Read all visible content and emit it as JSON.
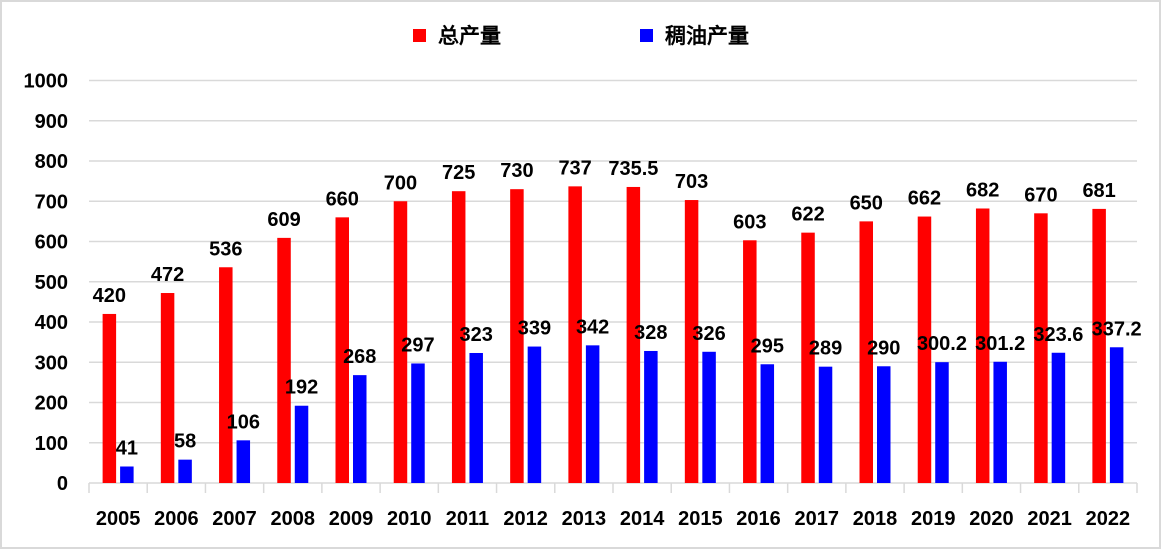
{
  "chart_data": {
    "type": "bar",
    "title": "",
    "xlabel": "",
    "ylabel": "",
    "ylim": [
      0,
      1000
    ],
    "yticks": [
      0,
      100,
      200,
      300,
      400,
      500,
      600,
      700,
      800,
      900,
      1000
    ],
    "grid": true,
    "legend_position": "top-center",
    "categories": [
      "2005",
      "2006",
      "2007",
      "2008",
      "2009",
      "2010",
      "2011",
      "2012",
      "2013",
      "2014",
      "2015",
      "2016",
      "2017",
      "2018",
      "2019",
      "2020",
      "2021",
      "2022"
    ],
    "series": [
      {
        "name": "总产量",
        "color": "#ff0000",
        "values": [
          420,
          472,
          536,
          609,
          660,
          700,
          725,
          730,
          737,
          735.5,
          703,
          603,
          622,
          650,
          662,
          682,
          670,
          681
        ]
      },
      {
        "name": "稠油产量",
        "color": "#0000ff",
        "values": [
          41,
          58,
          106,
          192,
          268,
          297,
          323,
          339,
          342,
          328,
          326,
          295,
          289,
          290,
          300.2,
          301.2,
          323.6,
          337.2
        ]
      }
    ]
  }
}
